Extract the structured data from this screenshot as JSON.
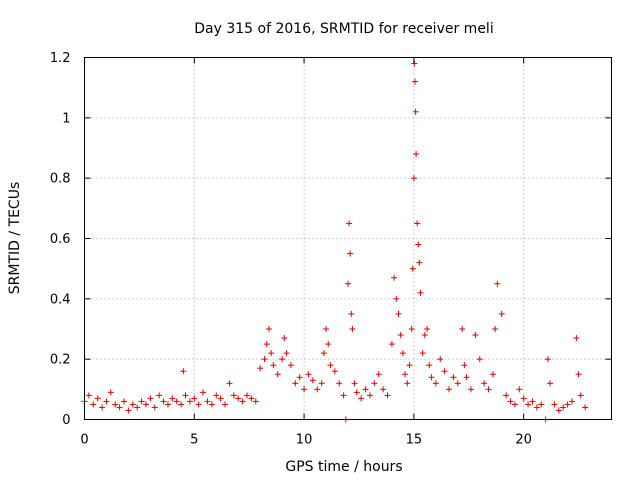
{
  "chart_data": {
    "type": "scatter",
    "title": "Day 315 of 2016, SRMTID for receiver meli",
    "xlabel": "GPS time / hours",
    "ylabel": "SRMTID / TECUs",
    "xlim": [
      0,
      24
    ],
    "ylim": [
      0,
      1.2
    ],
    "grid": true,
    "marker": "+",
    "marker_color": "#e00000",
    "x_ticks": [
      {
        "value": 0,
        "label": "0"
      },
      {
        "value": 5,
        "label": "5"
      },
      {
        "value": 10,
        "label": "10"
      },
      {
        "value": 15,
        "label": "15"
      },
      {
        "value": 20,
        "label": "20"
      }
    ],
    "y_ticks": [
      {
        "value": 0,
        "label": "0"
      },
      {
        "value": 0.2,
        "label": "0.2"
      },
      {
        "value": 0.4,
        "label": "0.4"
      },
      {
        "value": 0.6,
        "label": "0.6"
      },
      {
        "value": 0.8,
        "label": "0.8"
      },
      {
        "value": 1.0,
        "label": "1"
      },
      {
        "value": 1.2,
        "label": "1.2"
      }
    ],
    "series": [
      {
        "name": "SRMTID",
        "x": [
          0.0,
          0.2,
          0.4,
          0.6,
          0.8,
          1.0,
          1.2,
          1.4,
          1.6,
          1.8,
          2.0,
          2.2,
          2.4,
          2.6,
          2.8,
          3.0,
          3.2,
          3.4,
          3.6,
          3.8,
          4.0,
          4.2,
          4.4,
          4.5,
          4.6,
          4.8,
          5.0,
          5.2,
          5.4,
          5.6,
          5.8,
          6.0,
          6.2,
          6.4,
          6.6,
          6.8,
          7.0,
          7.2,
          7.4,
          7.6,
          7.8,
          8.0,
          8.2,
          8.3,
          8.4,
          8.5,
          8.6,
          8.8,
          9.0,
          9.1,
          9.2,
          9.4,
          9.6,
          9.8,
          10.0,
          10.2,
          10.4,
          10.6,
          10.8,
          10.9,
          11.0,
          11.1,
          11.2,
          11.4,
          11.6,
          11.8,
          11.9,
          12.0,
          12.05,
          12.1,
          12.15,
          12.2,
          12.3,
          12.4,
          12.6,
          12.8,
          13.0,
          13.2,
          13.4,
          13.6,
          13.8,
          14.0,
          14.1,
          14.2,
          14.3,
          14.4,
          14.5,
          14.6,
          14.7,
          14.8,
          14.9,
          14.95,
          15.0,
          15.02,
          15.05,
          15.08,
          15.1,
          15.15,
          15.2,
          15.25,
          15.3,
          15.4,
          15.5,
          15.6,
          15.7,
          15.8,
          16.0,
          16.2,
          16.4,
          16.6,
          16.8,
          17.0,
          17.2,
          17.3,
          17.4,
          17.6,
          17.8,
          18.0,
          18.2,
          18.4,
          18.6,
          18.7,
          18.8,
          19.0,
          19.2,
          19.4,
          19.6,
          19.8,
          20.0,
          20.2,
          20.4,
          20.6,
          20.8,
          21.0,
          21.1,
          21.2,
          21.4,
          21.6,
          21.8,
          22.0,
          22.2,
          22.4,
          22.5,
          22.6,
          22.8
        ],
        "y": [
          0.06,
          0.08,
          0.05,
          0.07,
          0.04,
          0.06,
          0.09,
          0.05,
          0.04,
          0.06,
          0.03,
          0.05,
          0.04,
          0.06,
          0.05,
          0.07,
          0.04,
          0.08,
          0.06,
          0.05,
          0.07,
          0.06,
          0.05,
          0.16,
          0.08,
          0.06,
          0.07,
          0.05,
          0.09,
          0.06,
          0.05,
          0.08,
          0.07,
          0.05,
          0.12,
          0.08,
          0.07,
          0.06,
          0.08,
          0.07,
          0.06,
          0.17,
          0.2,
          0.25,
          0.3,
          0.22,
          0.18,
          0.15,
          0.2,
          0.27,
          0.22,
          0.18,
          0.12,
          0.14,
          0.1,
          0.15,
          0.13,
          0.1,
          0.12,
          0.22,
          0.3,
          0.25,
          0.18,
          0.16,
          0.12,
          0.08,
          0.0,
          0.45,
          0.65,
          0.55,
          0.35,
          0.3,
          0.12,
          0.09,
          0.07,
          0.1,
          0.08,
          0.12,
          0.15,
          0.1,
          0.08,
          0.25,
          0.47,
          0.4,
          0.35,
          0.28,
          0.22,
          0.15,
          0.12,
          0.18,
          0.3,
          0.5,
          0.8,
          1.18,
          1.12,
          1.02,
          0.88,
          0.65,
          0.58,
          0.52,
          0.42,
          0.22,
          0.28,
          0.3,
          0.18,
          0.14,
          0.12,
          0.2,
          0.16,
          0.1,
          0.14,
          0.12,
          0.3,
          0.18,
          0.14,
          0.1,
          0.28,
          0.2,
          0.12,
          0.1,
          0.15,
          0.3,
          0.45,
          0.35,
          0.08,
          0.06,
          0.05,
          0.1,
          0.07,
          0.05,
          0.06,
          0.04,
          0.05,
          0.0,
          0.2,
          0.12,
          0.05,
          0.03,
          0.04,
          0.05,
          0.06,
          0.27,
          0.15,
          0.08,
          0.04
        ]
      }
    ]
  }
}
